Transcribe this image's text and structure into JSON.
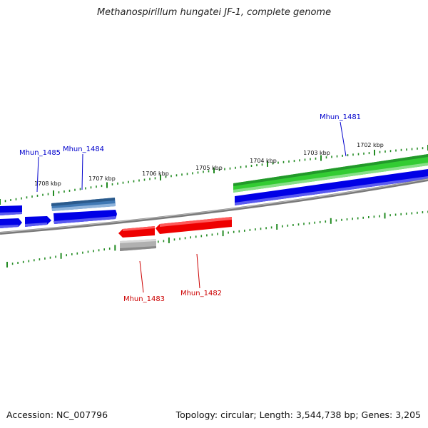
{
  "title": "Methanospirillum hungatei JF-1, complete genome",
  "footer": {
    "accession": "Accession: NC_007796",
    "summary": "Topology: circular; Length: 3,544,738 bp; Genes: 3,205"
  },
  "colors": {
    "forward_cds": "#0000e6",
    "forward_highlight": "#3f78b4",
    "reverse_cds": "#ee0000",
    "reverse_gray": "#b0b0b0",
    "rna_feature": "#33cc33",
    "tick": "#228b22",
    "backbone": "#808080",
    "label_forward": "#0000cc",
    "label_reverse": "#cc0000"
  },
  "scale_labels": [
    "1702 kbp",
    "1703 kbp",
    "1704 kbp",
    "1705 kbp",
    "1706 kbp",
    "1707 kbp",
    "1708 kbp"
  ],
  "gene_labels": {
    "mhun_1481": "Mhun_1481",
    "mhun_1482": "Mhun_1482",
    "mhun_1483": "Mhun_1483",
    "mhun_1484": "Mhun_1484",
    "mhun_1485": "Mhun_1485"
  }
}
